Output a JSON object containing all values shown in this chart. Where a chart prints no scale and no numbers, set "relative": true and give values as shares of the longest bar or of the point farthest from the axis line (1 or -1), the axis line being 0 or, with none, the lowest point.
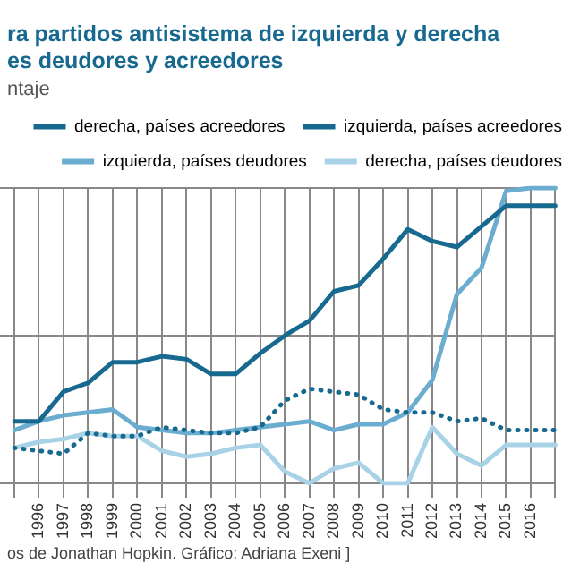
{
  "chart_data": {
    "type": "line",
    "title": "ra partidos antisistema de izquierda y derecha",
    "subtitle": "es deudores y acreedores",
    "ylabel": "ntaje",
    "annotations": [
      "os de Jonathan Hopkin. Gráfico: Adriana Exeni ]"
    ],
    "categories": [
      null,
      "1996",
      "1997",
      "1998",
      "1999",
      "2000",
      "2001",
      "2002",
      "2003",
      "2004",
      "2005",
      "2006",
      "2007",
      "2008",
      "2009",
      "2010",
      "2011",
      "2012",
      "2013",
      "2014",
      "2015",
      "2016",
      null
    ],
    "relative": true,
    "grid": true,
    "legend": "top right",
    "series": [
      {
        "name": "derecha, países acreedores",
        "color": "#17698f",
        "line_style": "solid",
        "values": [
          0.21,
          0.21,
          0.31,
          0.34,
          0.41,
          0.41,
          0.43,
          0.42,
          0.37,
          0.37,
          0.44,
          0.5,
          0.55,
          0.65,
          0.67,
          0.76,
          0.86,
          0.82,
          0.8,
          0.87,
          0.94,
          0.94,
          0.94
        ]
      },
      {
        "name": "izquierda, países acreedores",
        "color": "#17698f",
        "line_style": "dotted",
        "values": [
          0.12,
          0.11,
          0.1,
          0.17,
          0.16,
          0.16,
          0.19,
          0.18,
          0.17,
          0.17,
          0.19,
          0.28,
          0.32,
          0.31,
          0.3,
          0.25,
          0.24,
          0.24,
          0.21,
          0.22,
          0.18,
          0.18,
          0.18
        ]
      },
      {
        "name": "izquierda, países deudores",
        "color": "#6badd0",
        "line_style": "solid",
        "values": [
          0.18,
          0.21,
          0.23,
          0.24,
          0.25,
          0.19,
          0.18,
          0.17,
          0.17,
          0.18,
          0.19,
          0.2,
          0.21,
          0.18,
          0.2,
          0.2,
          0.24,
          0.35,
          0.64,
          0.73,
          0.99,
          1,
          1
        ]
      },
      {
        "name": "derecha, países deudores",
        "color": "#a8d2e6",
        "line_style": "solid",
        "values": [
          0.12,
          0.14,
          0.15,
          0.17,
          0.16,
          0.16,
          0.11,
          0.09,
          0.1,
          0.12,
          0.13,
          0.04,
          0,
          0.05,
          0.07,
          0,
          0,
          0.19,
          0.1,
          0.06,
          0.13,
          0.13,
          0.13
        ]
      }
    ]
  }
}
